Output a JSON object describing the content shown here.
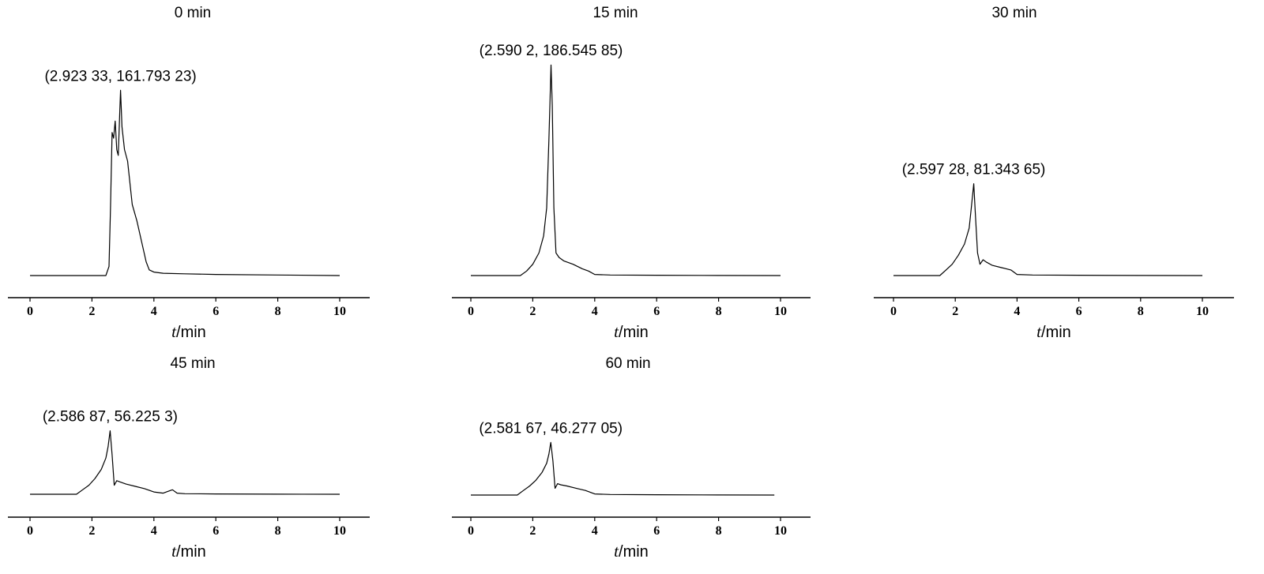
{
  "chart_data": [
    {
      "type": "line",
      "title": "0 min",
      "xlabel": {
        "var": "t",
        "unit": "/min"
      },
      "ylabel": "",
      "xlim": [
        0,
        10
      ],
      "xticks": [
        0,
        2,
        4,
        6,
        8,
        10
      ],
      "ylim": [
        0,
        200
      ],
      "peak_annotation": {
        "x": 2.92333,
        "y": 161.79323,
        "text": "(2.923 33, 161.793 23)"
      },
      "series": [
        {
          "x": [
            0,
            2.45,
            2.55,
            2.6,
            2.65,
            2.7,
            2.75,
            2.8,
            2.85,
            2.9,
            2.92333,
            2.97,
            3.05,
            3.15,
            3.3,
            3.45,
            3.6,
            3.75,
            3.85,
            4.0,
            4.3,
            5,
            6,
            8,
            10
          ],
          "y": [
            0,
            0,
            8,
            60,
            125,
            120,
            135,
            110,
            105,
            145,
            161.79,
            130,
            110,
            100,
            62,
            48,
            30,
            12,
            5,
            3,
            2,
            1.5,
            1,
            0.5,
            0
          ]
        }
      ]
    },
    {
      "type": "line",
      "title": "15 min",
      "xlabel": {
        "var": "t",
        "unit": "/min"
      },
      "ylabel": "",
      "xlim": [
        0,
        10
      ],
      "xticks": [
        0,
        2,
        4,
        6,
        8,
        10
      ],
      "ylim": [
        0,
        200
      ],
      "peak_annotation": {
        "x": 2.5902,
        "y": 186.54585,
        "text": "(2.590 2, 186.545 85)"
      },
      "series": [
        {
          "x": [
            0,
            1.6,
            1.8,
            2.0,
            2.2,
            2.35,
            2.45,
            2.52,
            2.5902,
            2.63,
            2.68,
            2.75,
            2.85,
            3.0,
            3.3,
            3.6,
            3.8,
            4.0,
            4.5,
            6,
            8,
            10
          ],
          "y": [
            0,
            0,
            4,
            10,
            20,
            35,
            60,
            120,
            186.5,
            150,
            60,
            20,
            16,
            13,
            10,
            6,
            4,
            1,
            0.5,
            0.3,
            0.1,
            0
          ]
        }
      ]
    },
    {
      "type": "line",
      "title": "30 min",
      "xlabel": {
        "var": "t",
        "unit": "/min"
      },
      "ylabel": "",
      "xlim": [
        0,
        10
      ],
      "xticks": [
        0,
        2,
        4,
        6,
        8,
        10
      ],
      "ylim": [
        0,
        200
      ],
      "peak_annotation": {
        "x": 2.59728,
        "y": 81.34365,
        "text": "(2.597 28, 81.343 65)"
      },
      "series": [
        {
          "x": [
            0,
            1.5,
            1.7,
            1.9,
            2.1,
            2.3,
            2.45,
            2.52,
            2.59728,
            2.65,
            2.72,
            2.8,
            2.9,
            3.0,
            3.2,
            3.5,
            3.8,
            4.0,
            4.5,
            6,
            8,
            10
          ],
          "y": [
            0,
            0,
            5,
            10,
            18,
            28,
            42,
            60,
            81.3,
            55,
            20,
            10,
            14,
            12,
            9,
            7,
            5,
            1,
            0.5,
            0.3,
            0.1,
            0
          ]
        }
      ]
    },
    {
      "type": "line",
      "title": "45 min",
      "xlabel": {
        "var": "t",
        "unit": "/min"
      },
      "ylabel": "",
      "xlim": [
        0,
        10
      ],
      "xticks": [
        0,
        2,
        4,
        6,
        8,
        10
      ],
      "ylim": [
        0,
        200
      ],
      "peak_annotation": {
        "x": 2.58687,
        "y": 56.2253,
        "text": "(2.586 87, 56.225 3)"
      },
      "series": [
        {
          "x": [
            0,
            1.5,
            1.7,
            1.9,
            2.1,
            2.3,
            2.45,
            2.52,
            2.58687,
            2.65,
            2.72,
            2.8,
            2.9,
            3.1,
            3.4,
            3.7,
            4.0,
            4.3,
            4.5,
            4.6,
            4.75,
            5,
            6,
            8,
            10
          ],
          "y": [
            0,
            0,
            4,
            8,
            14,
            22,
            32,
            42,
            56.2,
            35,
            8,
            12,
            11,
            9,
            7,
            5,
            2,
            1,
            3,
            4,
            1,
            0.5,
            0.3,
            0.1,
            0
          ]
        }
      ]
    },
    {
      "type": "line",
      "title": "60 min",
      "xlabel": {
        "var": "t",
        "unit": "/min"
      },
      "ylabel": "",
      "xlim": [
        0,
        10
      ],
      "xticks": [
        0,
        2,
        4,
        6,
        8,
        10
      ],
      "ylim": [
        0,
        200
      ],
      "peak_annotation": {
        "x": 2.58167,
        "y": 46.27705,
        "text": "(2.581 67, 46.277 05)"
      },
      "series": [
        {
          "x": [
            0,
            1.5,
            1.7,
            1.9,
            2.1,
            2.3,
            2.45,
            2.52,
            2.58167,
            2.65,
            2.72,
            2.8,
            2.9,
            3.1,
            3.4,
            3.7,
            4.0,
            4.5,
            6,
            8,
            9.8
          ],
          "y": [
            0,
            0,
            4,
            8,
            13,
            20,
            28,
            36,
            46.3,
            30,
            6,
            10,
            9,
            8,
            6,
            4,
            1,
            0.5,
            0.3,
            0.1,
            0
          ]
        }
      ]
    }
  ]
}
